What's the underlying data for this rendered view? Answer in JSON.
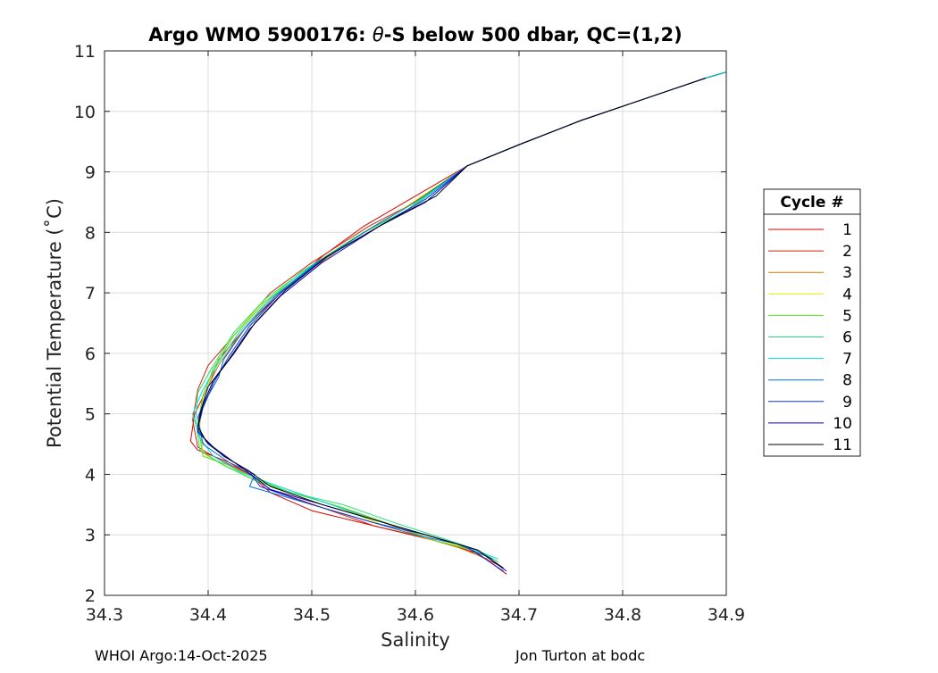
{
  "chart_data": {
    "type": "line",
    "title_prefix": "Argo WMO 5900176: ",
    "title_theta": "θ",
    "title_suffix": "-S below 500 dbar,  QC=(1,2)",
    "xlabel": "Salinity",
    "ylabel": "Potential Temperature (˚C)",
    "xlim": [
      34.3,
      34.9
    ],
    "ylim": [
      2,
      11
    ],
    "xticks": [
      34.3,
      34.4,
      34.5,
      34.6,
      34.7,
      34.8,
      34.9
    ],
    "xtick_labels": [
      "34.3",
      "34.4",
      "34.5",
      "34.6",
      "34.7",
      "34.8",
      "34.9"
    ],
    "yticks": [
      2,
      3,
      4,
      5,
      6,
      7,
      8,
      9,
      10,
      11
    ],
    "ytick_labels": [
      "2",
      "3",
      "4",
      "5",
      "6",
      "7",
      "8",
      "9",
      "10",
      "11"
    ],
    "grid": true,
    "legend": {
      "title": "Cycle #",
      "placement": "outside-right"
    },
    "series": [
      {
        "name": "1",
        "color": "#d40000",
        "points": [
          [
            34.55,
            8.1
          ],
          [
            34.51,
            7.6
          ],
          [
            34.47,
            7.0
          ],
          [
            34.44,
            6.5
          ],
          [
            34.41,
            5.9
          ],
          [
            34.4,
            5.45
          ],
          [
            34.387,
            5.0
          ],
          [
            34.383,
            4.55
          ],
          [
            34.39,
            4.4
          ],
          [
            34.42,
            4.2
          ],
          [
            34.44,
            4.0
          ],
          [
            34.46,
            3.7
          ],
          [
            34.5,
            3.4
          ],
          [
            34.56,
            3.15
          ],
          [
            34.62,
            2.9
          ],
          [
            34.66,
            2.7
          ],
          [
            34.688,
            2.35
          ]
        ]
      },
      {
        "name": "2",
        "color": "#d42000",
        "points": [
          [
            34.6,
            8.5
          ],
          [
            34.555,
            8.1
          ],
          [
            34.5,
            7.5
          ],
          [
            34.46,
            7.0
          ],
          [
            34.43,
            6.4
          ],
          [
            34.4,
            5.8
          ],
          [
            34.39,
            5.4
          ],
          [
            34.385,
            4.9
          ],
          [
            34.39,
            4.45
          ],
          [
            34.41,
            4.25
          ],
          [
            34.44,
            4.0
          ],
          [
            34.46,
            3.75
          ],
          [
            34.51,
            3.45
          ],
          [
            34.56,
            3.15
          ],
          [
            34.61,
            2.95
          ],
          [
            34.65,
            2.75
          ],
          [
            34.68,
            2.5
          ]
        ]
      },
      {
        "name": "3",
        "color": "#c87800",
        "points": [
          [
            34.59,
            8.4
          ],
          [
            34.55,
            8.0
          ],
          [
            34.5,
            7.4
          ],
          [
            34.46,
            6.9
          ],
          [
            34.43,
            6.3
          ],
          [
            34.41,
            5.8
          ],
          [
            34.395,
            5.3
          ],
          [
            34.39,
            4.8
          ],
          [
            34.395,
            4.35
          ],
          [
            34.41,
            4.2
          ],
          [
            34.44,
            3.95
          ],
          [
            34.47,
            3.75
          ],
          [
            34.52,
            3.5
          ],
          [
            34.57,
            3.2
          ],
          [
            34.61,
            2.95
          ],
          [
            34.64,
            2.8
          ],
          [
            34.67,
            2.6
          ]
        ]
      },
      {
        "name": "4",
        "color": "#e6e600",
        "points": [
          [
            34.58,
            8.3
          ],
          [
            34.54,
            7.9
          ],
          [
            34.49,
            7.3
          ],
          [
            34.45,
            6.8
          ],
          [
            34.42,
            6.2
          ],
          [
            34.405,
            5.7
          ],
          [
            34.395,
            5.25
          ],
          [
            34.392,
            4.8
          ],
          [
            34.395,
            4.35
          ],
          [
            34.41,
            4.2
          ],
          [
            34.44,
            3.95
          ],
          [
            34.47,
            3.75
          ],
          [
            34.52,
            3.5
          ],
          [
            34.57,
            3.15
          ],
          [
            34.62,
            2.9
          ],
          [
            34.66,
            2.75
          ],
          [
            34.68,
            2.55
          ]
        ]
      },
      {
        "name": "5",
        "color": "#55dd22",
        "points": [
          [
            34.59,
            8.35
          ],
          [
            34.545,
            7.95
          ],
          [
            34.49,
            7.35
          ],
          [
            34.455,
            6.85
          ],
          [
            34.425,
            6.3
          ],
          [
            34.405,
            5.75
          ],
          [
            34.395,
            5.3
          ],
          [
            34.39,
            4.85
          ],
          [
            34.395,
            4.3
          ],
          [
            34.42,
            4.15
          ],
          [
            34.45,
            3.9
          ],
          [
            34.48,
            3.7
          ],
          [
            34.53,
            3.45
          ],
          [
            34.58,
            3.15
          ],
          [
            34.62,
            2.9
          ],
          [
            34.655,
            2.75
          ],
          [
            34.675,
            2.6
          ]
        ]
      },
      {
        "name": "6",
        "color": "#22dd77",
        "points": [
          [
            34.595,
            8.4
          ],
          [
            34.55,
            8.0
          ],
          [
            34.495,
            7.4
          ],
          [
            34.455,
            6.9
          ],
          [
            34.425,
            6.35
          ],
          [
            34.405,
            5.8
          ],
          [
            34.39,
            5.35
          ],
          [
            34.388,
            4.9
          ],
          [
            34.392,
            4.4
          ],
          [
            34.415,
            4.15
          ],
          [
            34.445,
            3.9
          ],
          [
            34.48,
            3.7
          ],
          [
            34.53,
            3.5
          ],
          [
            34.58,
            3.2
          ],
          [
            34.625,
            2.95
          ],
          [
            34.66,
            2.75
          ],
          [
            34.68,
            2.55
          ]
        ]
      },
      {
        "name": "7",
        "color": "#00dddd",
        "points": [
          [
            34.6,
            8.45
          ],
          [
            34.56,
            8.05
          ],
          [
            34.5,
            7.45
          ],
          [
            34.46,
            6.9
          ],
          [
            34.43,
            6.35
          ],
          [
            34.41,
            5.85
          ],
          [
            34.395,
            5.4
          ],
          [
            34.385,
            5.0
          ],
          [
            34.392,
            4.6
          ],
          [
            34.405,
            4.3
          ],
          [
            34.43,
            4.05
          ],
          [
            34.46,
            3.85
          ],
          [
            34.51,
            3.55
          ],
          [
            34.56,
            3.25
          ],
          [
            34.61,
            3.0
          ],
          [
            34.65,
            2.8
          ],
          [
            34.68,
            2.6
          ]
        ]
      },
      {
        "name": "8",
        "color": "#0070dd",
        "points": [
          [
            34.6,
            8.5
          ],
          [
            34.56,
            8.1
          ],
          [
            34.505,
            7.5
          ],
          [
            34.465,
            6.95
          ],
          [
            34.435,
            6.4
          ],
          [
            34.415,
            5.9
          ],
          [
            34.41,
            5.6
          ],
          [
            34.4,
            5.3
          ],
          [
            34.39,
            4.95
          ],
          [
            34.395,
            4.5
          ],
          [
            34.42,
            4.2
          ],
          [
            34.445,
            4.0
          ],
          [
            34.44,
            3.8
          ],
          [
            34.49,
            3.55
          ],
          [
            34.55,
            3.25
          ],
          [
            34.6,
            3.0
          ],
          [
            34.64,
            2.85
          ],
          [
            34.675,
            2.6
          ]
        ]
      },
      {
        "name": "9",
        "color": "#1030dd",
        "points": [
          [
            34.61,
            8.55
          ],
          [
            34.57,
            8.15
          ],
          [
            34.51,
            7.55
          ],
          [
            34.47,
            7.0
          ],
          [
            34.44,
            6.45
          ],
          [
            34.42,
            5.95
          ],
          [
            34.405,
            5.5
          ],
          [
            34.395,
            5.1
          ],
          [
            34.39,
            4.75
          ],
          [
            34.4,
            4.5
          ],
          [
            34.42,
            4.25
          ],
          [
            34.44,
            4.05
          ],
          [
            34.45,
            3.8
          ],
          [
            34.5,
            3.5
          ],
          [
            34.56,
            3.2
          ],
          [
            34.61,
            3.0
          ],
          [
            34.65,
            2.8
          ],
          [
            34.685,
            2.4
          ]
        ]
      },
      {
        "name": "10",
        "color": "#0000c8",
        "points": [
          [
            34.61,
            8.5
          ],
          [
            34.565,
            8.1
          ],
          [
            34.51,
            7.5
          ],
          [
            34.47,
            6.95
          ],
          [
            34.44,
            6.4
          ],
          [
            34.42,
            5.9
          ],
          [
            34.4,
            5.45
          ],
          [
            34.392,
            5.0
          ],
          [
            34.39,
            4.7
          ],
          [
            34.405,
            4.45
          ],
          [
            34.425,
            4.2
          ],
          [
            34.445,
            3.95
          ],
          [
            34.46,
            3.75
          ],
          [
            34.51,
            3.5
          ],
          [
            34.57,
            3.2
          ],
          [
            34.62,
            2.95
          ],
          [
            34.66,
            2.75
          ],
          [
            34.688,
            2.4
          ]
        ]
      },
      {
        "name": "11",
        "color": "#000000",
        "points": [
          [
            34.62,
            8.6
          ],
          [
            34.575,
            8.2
          ],
          [
            34.515,
            7.6
          ],
          [
            34.475,
            7.05
          ],
          [
            34.445,
            6.5
          ],
          [
            34.425,
            6.0
          ],
          [
            34.405,
            5.55
          ],
          [
            34.395,
            5.15
          ],
          [
            34.39,
            4.8
          ],
          [
            34.398,
            4.55
          ],
          [
            34.415,
            4.3
          ],
          [
            34.44,
            4.05
          ],
          [
            34.46,
            3.8
          ],
          [
            34.51,
            3.5
          ],
          [
            34.57,
            3.2
          ],
          [
            34.62,
            2.95
          ],
          [
            34.66,
            2.75
          ],
          [
            34.685,
            2.45
          ]
        ]
      }
    ],
    "shared_upper_branch": [
      [
        34.9,
        10.65
      ],
      [
        34.88,
        10.55
      ],
      [
        34.82,
        10.2
      ],
      [
        34.76,
        9.85
      ],
      [
        34.7,
        9.45
      ],
      [
        34.65,
        9.1
      ]
    ],
    "shared_upper_color": "#00dddd"
  },
  "footer": {
    "left": "WHOI Argo:14-Oct-2025",
    "right": "Jon Turton at bodc"
  }
}
